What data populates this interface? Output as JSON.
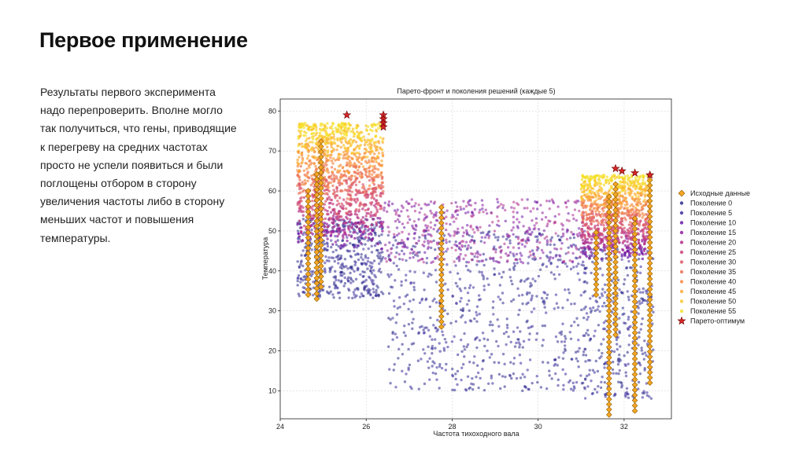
{
  "slide": {
    "title": "Первое применение",
    "body": "Результаты первого эксперимента надо перепроверить. Вполне могло так получиться, что гены, приводящие к перегреву на средних частотах просто не успели появиться и были поглощены отбором в сторону увеличения частоты либо в сторону меньших частот и повышения температуры."
  },
  "chart_data": {
    "type": "scatter",
    "title": "Парето-фронт и поколения решений (каждые 5)",
    "xlabel": "Частота тихоходного вала",
    "ylabel": "Температура",
    "xlim": [
      24,
      33.1
    ],
    "ylim": [
      3,
      83
    ],
    "xticks": [
      24,
      26,
      28,
      30,
      32
    ],
    "yticks": [
      10,
      20,
      30,
      40,
      50,
      60,
      70,
      80
    ],
    "grid": true,
    "legend_position": "right",
    "series": [
      {
        "name": "Исходные данные",
        "marker": "diamond",
        "color": "#f5a623",
        "edge": "#8a5a00"
      },
      {
        "name": "Поколение 0",
        "marker": "circle",
        "color": "#2b2a8c"
      },
      {
        "name": "Поколение 5",
        "marker": "circle",
        "color": "#3d2d9c"
      },
      {
        "name": "Поколение 10",
        "marker": "circle",
        "color": "#6a1aa5"
      },
      {
        "name": "Поколение 15",
        "marker": "circle",
        "color": "#8e1f9c"
      },
      {
        "name": "Поколение 20",
        "marker": "circle",
        "color": "#b0308b"
      },
      {
        "name": "Поколение 25",
        "marker": "circle",
        "color": "#c9437c"
      },
      {
        "name": "Поколение 30",
        "marker": "circle",
        "color": "#dc5a6c"
      },
      {
        "name": "Поколение 35",
        "marker": "circle",
        "color": "#eb735a"
      },
      {
        "name": "Поколение 40",
        "marker": "circle",
        "color": "#f58c48"
      },
      {
        "name": "Поколение 45",
        "marker": "circle",
        "color": "#fba838"
      },
      {
        "name": "Поколение 50",
        "marker": "circle",
        "color": "#fcc52b"
      },
      {
        "name": "Поколение 55",
        "marker": "circle",
        "color": "#f5e02a"
      },
      {
        "name": "Парето-оптимум",
        "marker": "star",
        "color": "#d62728",
        "edge": "#6b0000"
      }
    ],
    "initial_data_columns": [
      {
        "x": 24.65,
        "ymin": 34,
        "ymax": 60
      },
      {
        "x": 24.85,
        "ymin": 33,
        "ymax": 65
      },
      {
        "x": 24.95,
        "ymin": 36,
        "ymax": 73
      },
      {
        "x": 27.75,
        "ymin": 26,
        "ymax": 57
      },
      {
        "x": 31.35,
        "ymin": 34,
        "ymax": 50
      },
      {
        "x": 31.65,
        "ymin": 4,
        "ymax": 59
      },
      {
        "x": 31.8,
        "ymin": 24,
        "ymax": 62
      },
      {
        "x": 32.25,
        "ymin": 5,
        "ymax": 54
      },
      {
        "x": 32.6,
        "ymin": 12,
        "ymax": 64
      }
    ],
    "pareto_points": [
      {
        "x": 25.55,
        "y": 79
      },
      {
        "x": 26.4,
        "y": 79
      },
      {
        "x": 26.4,
        "y": 78
      },
      {
        "x": 26.4,
        "y": 77
      },
      {
        "x": 26.4,
        "y": 76
      },
      {
        "x": 31.8,
        "y": 65.6
      },
      {
        "x": 31.95,
        "y": 65
      },
      {
        "x": 32.25,
        "y": 64.5
      },
      {
        "x": 32.6,
        "y": 64
      }
    ]
  }
}
